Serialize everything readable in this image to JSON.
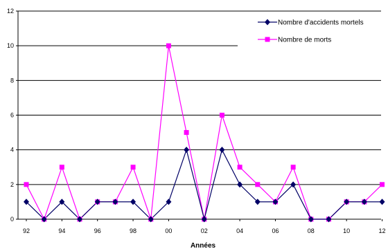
{
  "chart_data": {
    "type": "line",
    "title": "",
    "xlabel": "Années",
    "ylabel": "",
    "x": [
      "92",
      "93",
      "94",
      "95",
      "96",
      "97",
      "98",
      "99",
      "00",
      "01",
      "02",
      "03",
      "04",
      "05",
      "06",
      "07",
      "08",
      "09",
      "10",
      "11",
      "12"
    ],
    "x_tick_labels": [
      "92",
      "94",
      "96",
      "98",
      "00",
      "02",
      "04",
      "06",
      "08",
      "10",
      "12"
    ],
    "ylim": [
      0,
      12
    ],
    "y_ticks": [
      0,
      2,
      4,
      6,
      8,
      10,
      12
    ],
    "grid": "horizontal",
    "legend_position": "top-right",
    "series": [
      {
        "name": "Nombre d'accidents mortels",
        "color": "#000066",
        "marker": "diamond",
        "values": [
          1,
          0,
          1,
          0,
          1,
          1,
          1,
          0,
          1,
          4,
          0,
          4,
          2,
          1,
          1,
          2,
          0,
          0,
          1,
          1,
          1
        ]
      },
      {
        "name": "Nombre de morts",
        "color": "#ff00ff",
        "marker": "square",
        "values": [
          2,
          0,
          3,
          0,
          1,
          1,
          3,
          0,
          10,
          5,
          0,
          6,
          3,
          2,
          1,
          3,
          0,
          0,
          1,
          1,
          2
        ]
      }
    ]
  }
}
